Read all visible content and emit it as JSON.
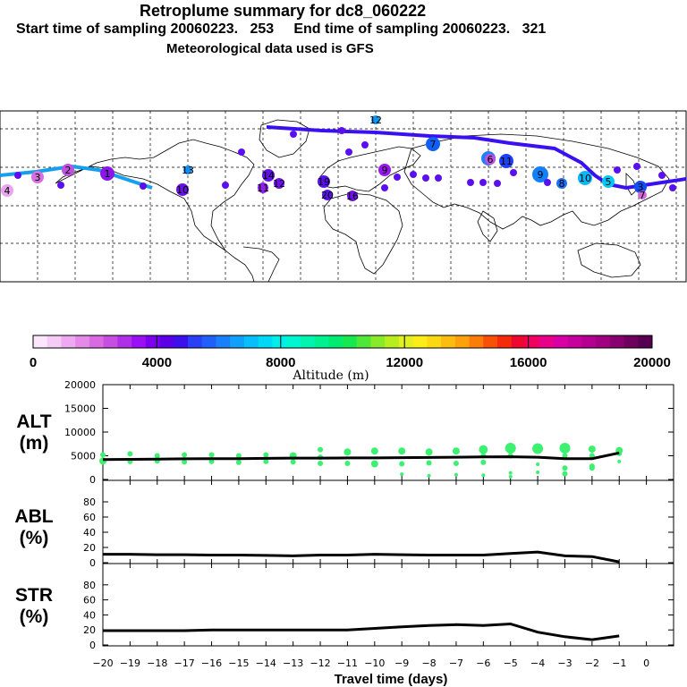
{
  "header": {
    "title": "Retroplume summary for dc8_060222",
    "subtitle_sampling": "Start time of sampling 20060223.   253     End time of sampling 20060223.   321",
    "subtitle_met": "Meteorological data used is GFS"
  },
  "colorbar": {
    "label": "Altitude (m)",
    "ticks": [
      "0",
      "4000",
      "8000",
      "12000",
      "16000",
      "20000"
    ],
    "colors": [
      "#fbe6fb",
      "#f5ccf5",
      "#eeaaf0",
      "#e48ae8",
      "#d86ae2",
      "#c64ee0",
      "#b030e8",
      "#9a10f4",
      "#7a00ee",
      "#5a00e6",
      "#3b10ec",
      "#2a40f4",
      "#2060f8",
      "#1a80fa",
      "#10a0fa",
      "#08bef8",
      "#00d8f6",
      "#00eeea",
      "#00f6d0",
      "#00f4b0",
      "#00f290",
      "#00ec70",
      "#18e850",
      "#50e838",
      "#88ea28",
      "#b8ee20",
      "#e0f020",
      "#fcec18",
      "#fcd814",
      "#fcbc10",
      "#fca00c",
      "#fc7c0a",
      "#f85008",
      "#f42a0a",
      "#ee0830",
      "#f00060",
      "#e8008a",
      "#d800a4",
      "#c6009c",
      "#b40090",
      "#a00080",
      "#880070",
      "#6e005e",
      "#560050"
    ]
  },
  "chart_data": [
    {
      "type": "scatter",
      "name": "ALT",
      "ylabel": "ALT\n(m)",
      "ylabel_lines": [
        "ALT",
        "(m)"
      ],
      "ylim": [
        0,
        20000
      ],
      "yticks": [
        "20000",
        "15000",
        "10000",
        "5000",
        "0"
      ],
      "line_x": [
        -20,
        -19,
        -18,
        -17,
        -16,
        -15,
        -14,
        -13,
        -12,
        -11,
        -10,
        -9,
        -8,
        -7,
        -6,
        -5,
        -4,
        -3,
        -2,
        -1
      ],
      "line_y": [
        4200,
        4250,
        4300,
        4350,
        4400,
        4400,
        4450,
        4500,
        4500,
        4550,
        4550,
        4600,
        4650,
        4700,
        4750,
        4800,
        4700,
        4400,
        4400,
        5600
      ],
      "points": [
        {
          "x": -20,
          "y": 5200,
          "s": 3
        },
        {
          "x": -20,
          "y": 3900,
          "s": 4
        },
        {
          "x": -19,
          "y": 5400,
          "s": 3
        },
        {
          "x": -19,
          "y": 3800,
          "s": 3
        },
        {
          "x": -18,
          "y": 5000,
          "s": 3
        },
        {
          "x": -18,
          "y": 3900,
          "s": 3
        },
        {
          "x": -17,
          "y": 5200,
          "s": 3
        },
        {
          "x": -17,
          "y": 3700,
          "s": 3
        },
        {
          "x": -16,
          "y": 5200,
          "s": 3
        },
        {
          "x": -16,
          "y": 3800,
          "s": 3
        },
        {
          "x": -15,
          "y": 5000,
          "s": 3
        },
        {
          "x": -15,
          "y": 3600,
          "s": 3
        },
        {
          "x": -14,
          "y": 5200,
          "s": 3
        },
        {
          "x": -14,
          "y": 3800,
          "s": 3
        },
        {
          "x": -13,
          "y": 5000,
          "s": 4
        },
        {
          "x": -13,
          "y": 3700,
          "s": 3
        },
        {
          "x": -12,
          "y": 6300,
          "s": 3
        },
        {
          "x": -12,
          "y": 4700,
          "s": 3
        },
        {
          "x": -12,
          "y": 3400,
          "s": 3
        },
        {
          "x": -11,
          "y": 5800,
          "s": 4
        },
        {
          "x": -11,
          "y": 3400,
          "s": 3
        },
        {
          "x": -10,
          "y": 6000,
          "s": 4
        },
        {
          "x": -10,
          "y": 3300,
          "s": 4
        },
        {
          "x": -9,
          "y": 6000,
          "s": 4
        },
        {
          "x": -9,
          "y": 3300,
          "s": 3
        },
        {
          "x": -9,
          "y": 1100,
          "s": 2
        },
        {
          "x": -8,
          "y": 5800,
          "s": 4
        },
        {
          "x": -8,
          "y": 3500,
          "s": 3
        },
        {
          "x": -8,
          "y": 800,
          "s": 2
        },
        {
          "x": -7,
          "y": 6000,
          "s": 4
        },
        {
          "x": -7,
          "y": 3400,
          "s": 3
        },
        {
          "x": -7,
          "y": 1000,
          "s": 2
        },
        {
          "x": -6,
          "y": 6300,
          "s": 5
        },
        {
          "x": -6,
          "y": 5000,
          "s": 3
        },
        {
          "x": -6,
          "y": 3600,
          "s": 3
        },
        {
          "x": -6,
          "y": 900,
          "s": 2
        },
        {
          "x": -5,
          "y": 6600,
          "s": 6
        },
        {
          "x": -5,
          "y": 5000,
          "s": 3
        },
        {
          "x": -5,
          "y": 1400,
          "s": 2
        },
        {
          "x": -5,
          "y": 600,
          "s": 2
        },
        {
          "x": -4,
          "y": 6500,
          "s": 6
        },
        {
          "x": -4,
          "y": 3200,
          "s": 2
        },
        {
          "x": -4,
          "y": 1500,
          "s": 2
        },
        {
          "x": -3,
          "y": 6600,
          "s": 6
        },
        {
          "x": -3,
          "y": 5000,
          "s": 3
        },
        {
          "x": -3,
          "y": 2400,
          "s": 3
        },
        {
          "x": -3,
          "y": 1200,
          "s": 3
        },
        {
          "x": -2,
          "y": 6400,
          "s": 4
        },
        {
          "x": -2,
          "y": 5000,
          "s": 3
        },
        {
          "x": -2,
          "y": 2800,
          "s": 3
        },
        {
          "x": -2,
          "y": 2400,
          "s": 3
        },
        {
          "x": -1,
          "y": 6100,
          "s": 4
        },
        {
          "x": -1,
          "y": 5500,
          "s": 3
        },
        {
          "x": -1,
          "y": 3800,
          "s": 2
        }
      ],
      "point_color": "#3cf070"
    },
    {
      "type": "line",
      "name": "ABL",
      "ylabel_lines": [
        "ABL",
        "(%)"
      ],
      "ylim": [
        0,
        100
      ],
      "yticks": [
        "80",
        "60",
        "40",
        "20",
        "0"
      ],
      "x": [
        -20,
        -19,
        -18,
        -17,
        -16,
        -15,
        -14,
        -13,
        -12,
        -11,
        -10,
        -9,
        -8,
        -7,
        -6,
        -5,
        -4,
        -3,
        -2,
        -1
      ],
      "y": [
        11,
        11,
        10.5,
        10.5,
        10,
        10,
        9.5,
        9,
        10,
        10,
        11,
        10.5,
        10,
        10,
        10,
        12,
        14,
        9,
        8,
        1
      ]
    },
    {
      "type": "line",
      "name": "STR",
      "ylabel_lines": [
        "STR",
        "(%)"
      ],
      "ylim": [
        0,
        100
      ],
      "yticks": [
        "80",
        "60",
        "40",
        "20",
        "0"
      ],
      "x": [
        -20,
        -19,
        -18,
        -17,
        -16,
        -15,
        -14,
        -13,
        -12,
        -11,
        -10,
        -9,
        -8,
        -7,
        -6,
        -5,
        -4,
        -3,
        -2,
        -1
      ],
      "y": [
        19,
        19,
        19,
        19,
        20,
        20,
        20,
        20,
        20,
        20,
        22,
        24,
        26,
        27,
        26,
        28,
        17,
        11,
        7,
        12
      ]
    }
  ],
  "xaxis": {
    "ticks": [
      "−20",
      "−19",
      "−18",
      "−17",
      "−16",
      "−15",
      "−14",
      "−13",
      "−12",
      "−11",
      "−10",
      "−9",
      "−8",
      "−7",
      "−6",
      "−5",
      "−4",
      "−3",
      "−2",
      "−1",
      "0"
    ],
    "label": "Travel time (days)"
  },
  "map": {
    "track_color": "#3a10f0",
    "track_color_west": "#14a0ee",
    "markers": [
      {
        "label": "4",
        "c": "#e8a4ec"
      },
      {
        "label": "3",
        "c": "#d470e0"
      },
      {
        "label": "2",
        "c": "#c050e0"
      },
      {
        "label": "1",
        "c": "#8818e8"
      },
      {
        "label": "13",
        "c": "#1090f8"
      },
      {
        "label": "14",
        "c": "#6010e8"
      },
      {
        "label": "12",
        "c": "#7010e8"
      },
      {
        "label": "11",
        "c": "#9020e8"
      },
      {
        "label": "10",
        "c": "#6810e8"
      },
      {
        "label": "19",
        "c": "#5a10ec"
      },
      {
        "label": "20",
        "c": "#5a10ec"
      },
      {
        "label": "16",
        "c": "#7010e8"
      },
      {
        "label": "7",
        "c": "#1060f8"
      },
      {
        "label": "6",
        "c": "#2080f8"
      },
      {
        "label": "9",
        "c": "#1280fa"
      },
      {
        "label": "10",
        "c": "#08b8f8"
      },
      {
        "label": "5",
        "c": "#00c8f6"
      },
      {
        "label": "8",
        "c": "#2070f8"
      },
      {
        "label": "3",
        "c": "#1050f6"
      },
      {
        "label": "12",
        "c": "#0898f8"
      },
      {
        "label": "7",
        "c": "#d068e0"
      },
      {
        "label": "6",
        "c": "#c050e0"
      },
      {
        "label": "11",
        "c": "#2040f6"
      },
      {
        "label": "9",
        "c": "#9a18ec"
      }
    ]
  }
}
